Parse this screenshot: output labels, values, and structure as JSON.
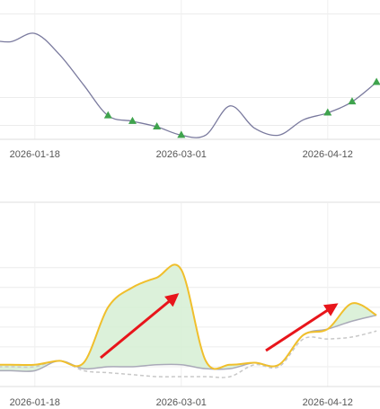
{
  "chart_data": [
    {
      "type": "line",
      "x": [
        "2026-01-04",
        "2026-01-11",
        "2026-01-18",
        "2026-01-25",
        "2026-02-01",
        "2026-02-08",
        "2026-02-15",
        "2026-02-22",
        "2026-03-01",
        "2026-03-08",
        "2026-03-15",
        "2026-03-22",
        "2026-03-29",
        "2026-04-05",
        "2026-04-12",
        "2026-04-19",
        "2026-04-26"
      ],
      "xlim": [
        "2026-01-08",
        "2026-04-27"
      ],
      "xticks": [
        "2026-01-18",
        "2026-03-01",
        "2026-04-12"
      ],
      "ylim": [
        0,
        100
      ],
      "ygrid": [
        10,
        30,
        90
      ],
      "series": [
        {
          "color": "#7a7a9e",
          "marker_color": "#3fa34d",
          "values": [
            72,
            70,
            76,
            61,
            39,
            17,
            13,
            9,
            3,
            3,
            24,
            8,
            3,
            14,
            19,
            27,
            41
          ],
          "markers": [
            false,
            false,
            false,
            false,
            false,
            true,
            true,
            true,
            true,
            false,
            false,
            false,
            false,
            false,
            true,
            true,
            true
          ]
        }
      ]
    },
    {
      "type": "area-band",
      "x": [
        "2026-01-04",
        "2026-01-11",
        "2026-01-18",
        "2026-01-25",
        "2026-02-01",
        "2026-02-08",
        "2026-02-15",
        "2026-02-22",
        "2026-03-01",
        "2026-03-08",
        "2026-03-15",
        "2026-03-22",
        "2026-03-29",
        "2026-04-05",
        "2026-04-12",
        "2026-04-19",
        "2026-04-26"
      ],
      "xlim": [
        "2026-01-08",
        "2026-04-27"
      ],
      "xticks": [
        "2026-01-18",
        "2026-03-01",
        "2026-04-12"
      ],
      "ylim": [
        0,
        93
      ],
      "ygrid": [
        10,
        20,
        30,
        40,
        50,
        60
      ],
      "fill_color": "#d6efd3",
      "series": [
        {
          "color": "#f0bf2c",
          "values": [
            11,
            11,
            11,
            13,
            12,
            40,
            50,
            55,
            59,
            13,
            11,
            12,
            11,
            26,
            29,
            42,
            36
          ]
        },
        {
          "color": "#a9a9b8",
          "values": [
            8,
            8,
            8,
            13,
            9,
            10,
            10,
            11,
            11,
            9,
            9,
            12,
            11,
            26,
            29,
            33,
            36
          ]
        },
        {
          "color": "#c8c8c8",
          "dashed": true,
          "values": [
            10,
            10,
            10,
            13,
            8,
            7,
            6,
            5,
            5,
            5,
            5,
            11,
            10,
            24,
            24,
            25,
            28
          ]
        }
      ]
    }
  ]
}
